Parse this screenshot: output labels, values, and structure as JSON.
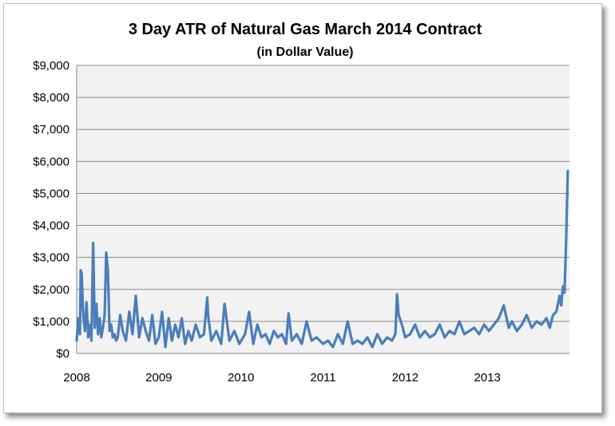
{
  "chart_data": {
    "type": "line",
    "title": "3 Day ATR of Natural Gas March 2014 Contract",
    "subtitle": "(in Dollar Value)",
    "xlabel": "",
    "ylabel": "",
    "x_tick_labels": [
      "2008",
      "2009",
      "2010",
      "2011",
      "2012",
      "2013"
    ],
    "y_tick_labels": [
      "$0",
      "$1,000",
      "$2,000",
      "$3,000",
      "$4,000",
      "$5,000",
      "$6,000",
      "$7,000",
      "$8,000",
      "$9,000"
    ],
    "xlim": [
      2008.0,
      2014.0
    ],
    "ylim": [
      0,
      9000
    ],
    "grid": "horizontal",
    "legend": "none",
    "series_color": "#4a7ebb",
    "plot_background": "#f2f2f2",
    "gridline_color": "#8c8c8c",
    "series": [
      {
        "x": [
          2008.0,
          2008.02,
          2008.04,
          2008.05,
          2008.06,
          2008.08,
          2008.1,
          2008.12,
          2008.14,
          2008.16,
          2008.18,
          2008.2,
          2008.22,
          2008.24,
          2008.26,
          2008.28,
          2008.3,
          2008.32,
          2008.34,
          2008.36,
          2008.38,
          2008.4,
          2008.42,
          2008.44,
          2008.46,
          2008.48,
          2008.5,
          2008.53,
          2008.56,
          2008.6,
          2008.64,
          2008.68,
          2008.72,
          2008.76,
          2008.8,
          2008.84,
          2008.88,
          2008.92,
          2008.96,
          2009.0,
          2009.04,
          2009.08,
          2009.12,
          2009.16,
          2009.2,
          2009.24,
          2009.28,
          2009.32,
          2009.36,
          2009.4,
          2009.45,
          2009.5,
          2009.55,
          2009.59,
          2009.6,
          2009.64,
          2009.7,
          2009.76,
          2009.8,
          2009.86,
          2009.92,
          2009.98,
          2010.05,
          2010.1,
          2010.15,
          2010.2,
          2010.25,
          2010.3,
          2010.35,
          2010.4,
          2010.45,
          2010.5,
          2010.55,
          2010.58,
          2010.62,
          2010.68,
          2010.74,
          2010.8,
          2010.86,
          2010.92,
          2011.0,
          2011.06,
          2011.12,
          2011.18,
          2011.24,
          2011.3,
          2011.36,
          2011.42,
          2011.48,
          2011.54,
          2011.6,
          2011.66,
          2011.72,
          2011.78,
          2011.84,
          2011.88,
          2011.9,
          2011.92,
          2011.96,
          2012.0,
          2012.06,
          2012.12,
          2012.18,
          2012.24,
          2012.3,
          2012.36,
          2012.42,
          2012.48,
          2012.54,
          2012.6,
          2012.66,
          2012.72,
          2012.78,
          2012.84,
          2012.9,
          2012.96,
          2013.02,
          2013.08,
          2013.14,
          2013.2,
          2013.26,
          2013.3,
          2013.36,
          2013.42,
          2013.48,
          2013.54,
          2013.6,
          2013.66,
          2013.72,
          2013.76,
          2013.8,
          2013.84,
          2013.88,
          2013.9,
          2013.92,
          2013.94,
          2013.96,
          2013.98
        ],
        "y": [
          400,
          1100,
          600,
          2600,
          2500,
          1200,
          700,
          1600,
          500,
          900,
          400,
          3450,
          800,
          1550,
          600,
          1100,
          500,
          800,
          1200,
          3150,
          2600,
          700,
          900,
          500,
          600,
          400,
          500,
          1200,
          700,
          400,
          1300,
          600,
          1800,
          500,
          1100,
          700,
          400,
          1200,
          300,
          500,
          1300,
          200,
          1100,
          400,
          900,
          500,
          1100,
          300,
          700,
          400,
          900,
          500,
          600,
          1750,
          1200,
          400,
          700,
          300,
          1550,
          400,
          700,
          300,
          600,
          1300,
          300,
          900,
          500,
          600,
          300,
          700,
          500,
          600,
          300,
          1250,
          400,
          600,
          300,
          1000,
          400,
          500,
          300,
          400,
          200,
          600,
          300,
          1000,
          300,
          400,
          300,
          500,
          200,
          600,
          300,
          500,
          400,
          600,
          1850,
          1200,
          900,
          500,
          600,
          900,
          500,
          700,
          500,
          600,
          900,
          500,
          700,
          600,
          1000,
          600,
          700,
          800,
          600,
          900,
          700,
          900,
          1100,
          1500,
          800,
          1000,
          700,
          900,
          1200,
          800,
          1000,
          900,
          1100,
          800,
          1200,
          1300,
          1800,
          1500,
          2100,
          1900,
          3600,
          5700
        ]
      }
    ]
  }
}
